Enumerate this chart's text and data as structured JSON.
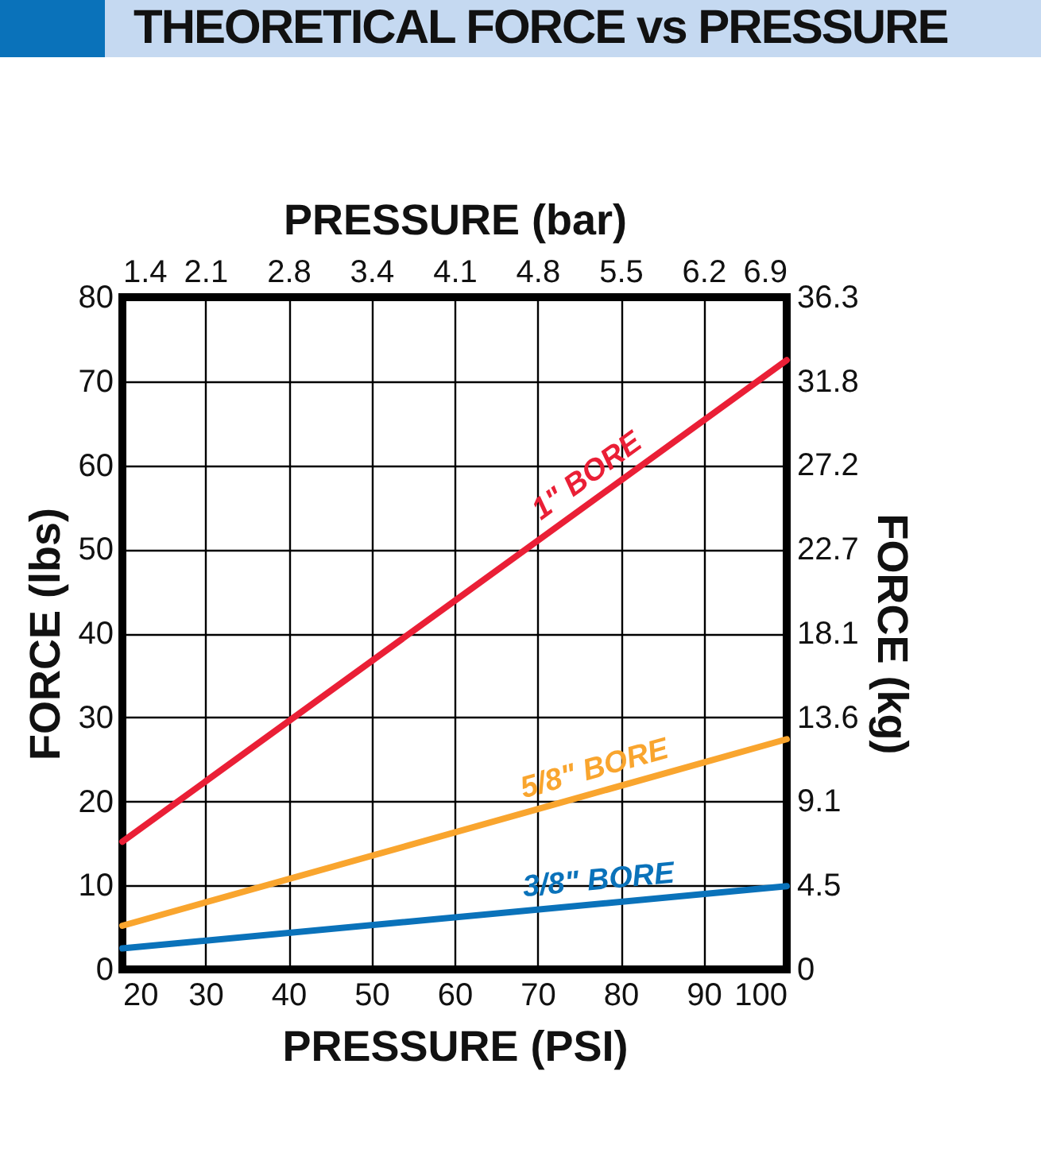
{
  "chart_data": {
    "type": "line",
    "title": "THEORETICAL FORCE vs PRESSURE",
    "xlabel": "PRESSURE (PSI)",
    "x2label": "PRESSURE (bar)",
    "ylabel": "FORCE (lbs)",
    "y2label": "FORCE (kg)",
    "x": [
      20,
      100
    ],
    "series": [
      {
        "name": "1\" BORE",
        "color": "#ea1f36",
        "values": [
          15.2,
          72.5
        ]
      },
      {
        "name": "5/8\" BORE",
        "color": "#f9a52e",
        "values": [
          5.2,
          27.4
        ]
      },
      {
        "name": "3/8\" BORE",
        "color": "#0a72ba",
        "values": [
          2.5,
          9.9
        ]
      }
    ],
    "xlim": [
      20,
      100
    ],
    "xticks": [
      20,
      30,
      40,
      50,
      60,
      70,
      80,
      90,
      100
    ],
    "x2lim": [
      1.379,
      6.895
    ],
    "x2ticks": [
      {
        "value": 1.379,
        "label": "1.4"
      },
      {
        "value": 2.068,
        "label": "2.1"
      },
      {
        "value": 2.758,
        "label": "2.8"
      },
      {
        "value": 3.447,
        "label": "3.4"
      },
      {
        "value": 4.137,
        "label": "4.1"
      },
      {
        "value": 4.826,
        "label": "4.8"
      },
      {
        "value": 5.516,
        "label": "5.5"
      },
      {
        "value": 6.205,
        "label": "6.2"
      },
      {
        "value": 6.895,
        "label": "6.9"
      }
    ],
    "ylim": [
      0,
      80
    ],
    "yticks": [
      0,
      10,
      20,
      30,
      40,
      50,
      60,
      70,
      80
    ],
    "y2lim": [
      0,
      36.287
    ],
    "y2ticks": [
      {
        "value": 0,
        "label": "0"
      },
      {
        "value": 4.536,
        "label": "4.5"
      },
      {
        "value": 9.072,
        "label": "9.1"
      },
      {
        "value": 13.608,
        "label": "13.6"
      },
      {
        "value": 18.144,
        "label": "18.1"
      },
      {
        "value": 22.68,
        "label": "22.7"
      },
      {
        "value": 27.216,
        "label": "27.2"
      },
      {
        "value": 31.751,
        "label": "31.8"
      },
      {
        "value": 36.287,
        "label": "36.3"
      }
    ],
    "grid": true,
    "line_style": "solid"
  }
}
